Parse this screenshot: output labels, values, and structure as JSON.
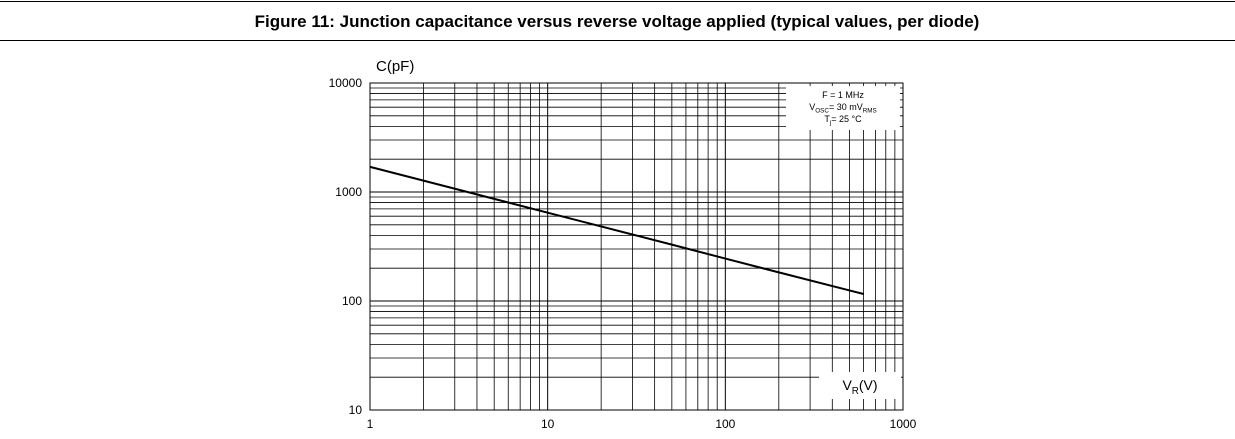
{
  "chart_data": {
    "type": "line",
    "title": "Figure 11: Junction capacitance versus reverse voltage applied (typical values, per diode)",
    "y_label": "C(pF)",
    "x_label": [
      {
        "text": "V"
      },
      {
        "text": "R",
        "sub": true
      },
      {
        "text": "(V)"
      }
    ],
    "annotation": [
      [
        {
          "text": "F = 1 MHz"
        }
      ],
      [
        {
          "text": "V"
        },
        {
          "text": "OSC",
          "sub": true
        },
        {
          "text": "= 30 mV"
        },
        {
          "text": "RMS",
          "sub": true
        }
      ],
      [
        {
          "text": "T"
        },
        {
          "text": "j",
          "sub": true
        },
        {
          "text": "= 25 °C"
        }
      ]
    ],
    "x": [
      1,
      2,
      5,
      10,
      20,
      50,
      100,
      200,
      500,
      600
    ],
    "series": [
      {
        "name": "C",
        "color": "#000000",
        "values": [
          1700,
          1271,
          865,
          646,
          483,
          329,
          245,
          183,
          125,
          116
        ]
      }
    ],
    "xlim": [
      1,
      1000
    ],
    "ylim": [
      10,
      10000
    ],
    "xticks": [
      1,
      10,
      100,
      1000
    ],
    "yticks": [
      10,
      100,
      1000,
      10000
    ],
    "xminor_ticks": [
      2,
      3,
      4,
      5,
      6,
      7,
      8,
      9,
      20,
      30,
      40,
      50,
      60,
      70,
      80,
      90,
      200,
      300,
      400,
      500,
      600,
      700,
      800,
      900
    ],
    "yminor_ticks": [
      20,
      30,
      40,
      50,
      60,
      70,
      80,
      90,
      200,
      300,
      400,
      500,
      600,
      700,
      800,
      900,
      2000,
      3000,
      4000,
      5000,
      6000,
      7000,
      8000,
      9000
    ],
    "log_x": true,
    "log_y": true,
    "grid": true
  }
}
